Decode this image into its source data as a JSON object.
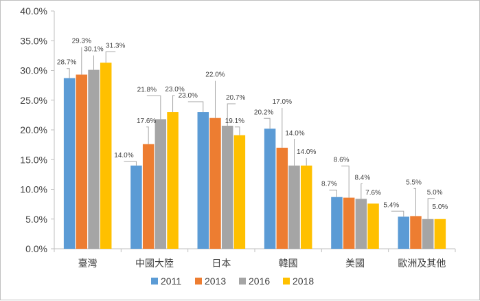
{
  "chart_data": {
    "type": "bar",
    "categories": [
      "臺灣",
      "中國大陸",
      "日本",
      "韓國",
      "美國",
      "歐洲及其他"
    ],
    "series": [
      {
        "name": "2011",
        "color": "#5B9BD5",
        "values": [
          28.7,
          14.0,
          23.0,
          20.2,
          8.7,
          5.4
        ]
      },
      {
        "name": "2013",
        "color": "#ED7D31",
        "values": [
          29.3,
          17.6,
          22.0,
          17.0,
          8.6,
          5.5
        ]
      },
      {
        "name": "2016",
        "color": "#A5A5A5",
        "values": [
          30.1,
          21.8,
          20.7,
          14.0,
          8.4,
          5.0
        ]
      },
      {
        "name": "2018",
        "color": "#FFC000",
        "values": [
          31.3,
          23.0,
          19.1,
          14.0,
          7.6,
          5.0
        ]
      }
    ],
    "data_labels": [
      [
        "28.7%",
        "14.0%",
        "23.0%",
        "20.2%",
        "8.7%",
        "5.4%"
      ],
      [
        "29.3%",
        "17.6%",
        "22.0%",
        "17.0%",
        "8.6%",
        "5.5%"
      ],
      [
        "30.1%",
        "21.8%",
        "20.7%",
        "14.0%",
        "8.4%",
        "5.0%"
      ],
      [
        "31.3%",
        "23.0%",
        "19.1%",
        "14.0%",
        "7.6%",
        "5.0%"
      ]
    ],
    "ylim": [
      0,
      40
    ],
    "yticks": [
      0,
      5,
      10,
      15,
      20,
      25,
      30,
      35,
      40
    ],
    "ytick_labels": [
      "0.0%",
      "5.0%",
      "10.0%",
      "15.0%",
      "20.0%",
      "25.0%",
      "30.0%",
      "35.0%",
      "40.0%"
    ],
    "legend_position": "bottom",
    "grid": false,
    "title": "",
    "xlabel": "",
    "ylabel": ""
  }
}
